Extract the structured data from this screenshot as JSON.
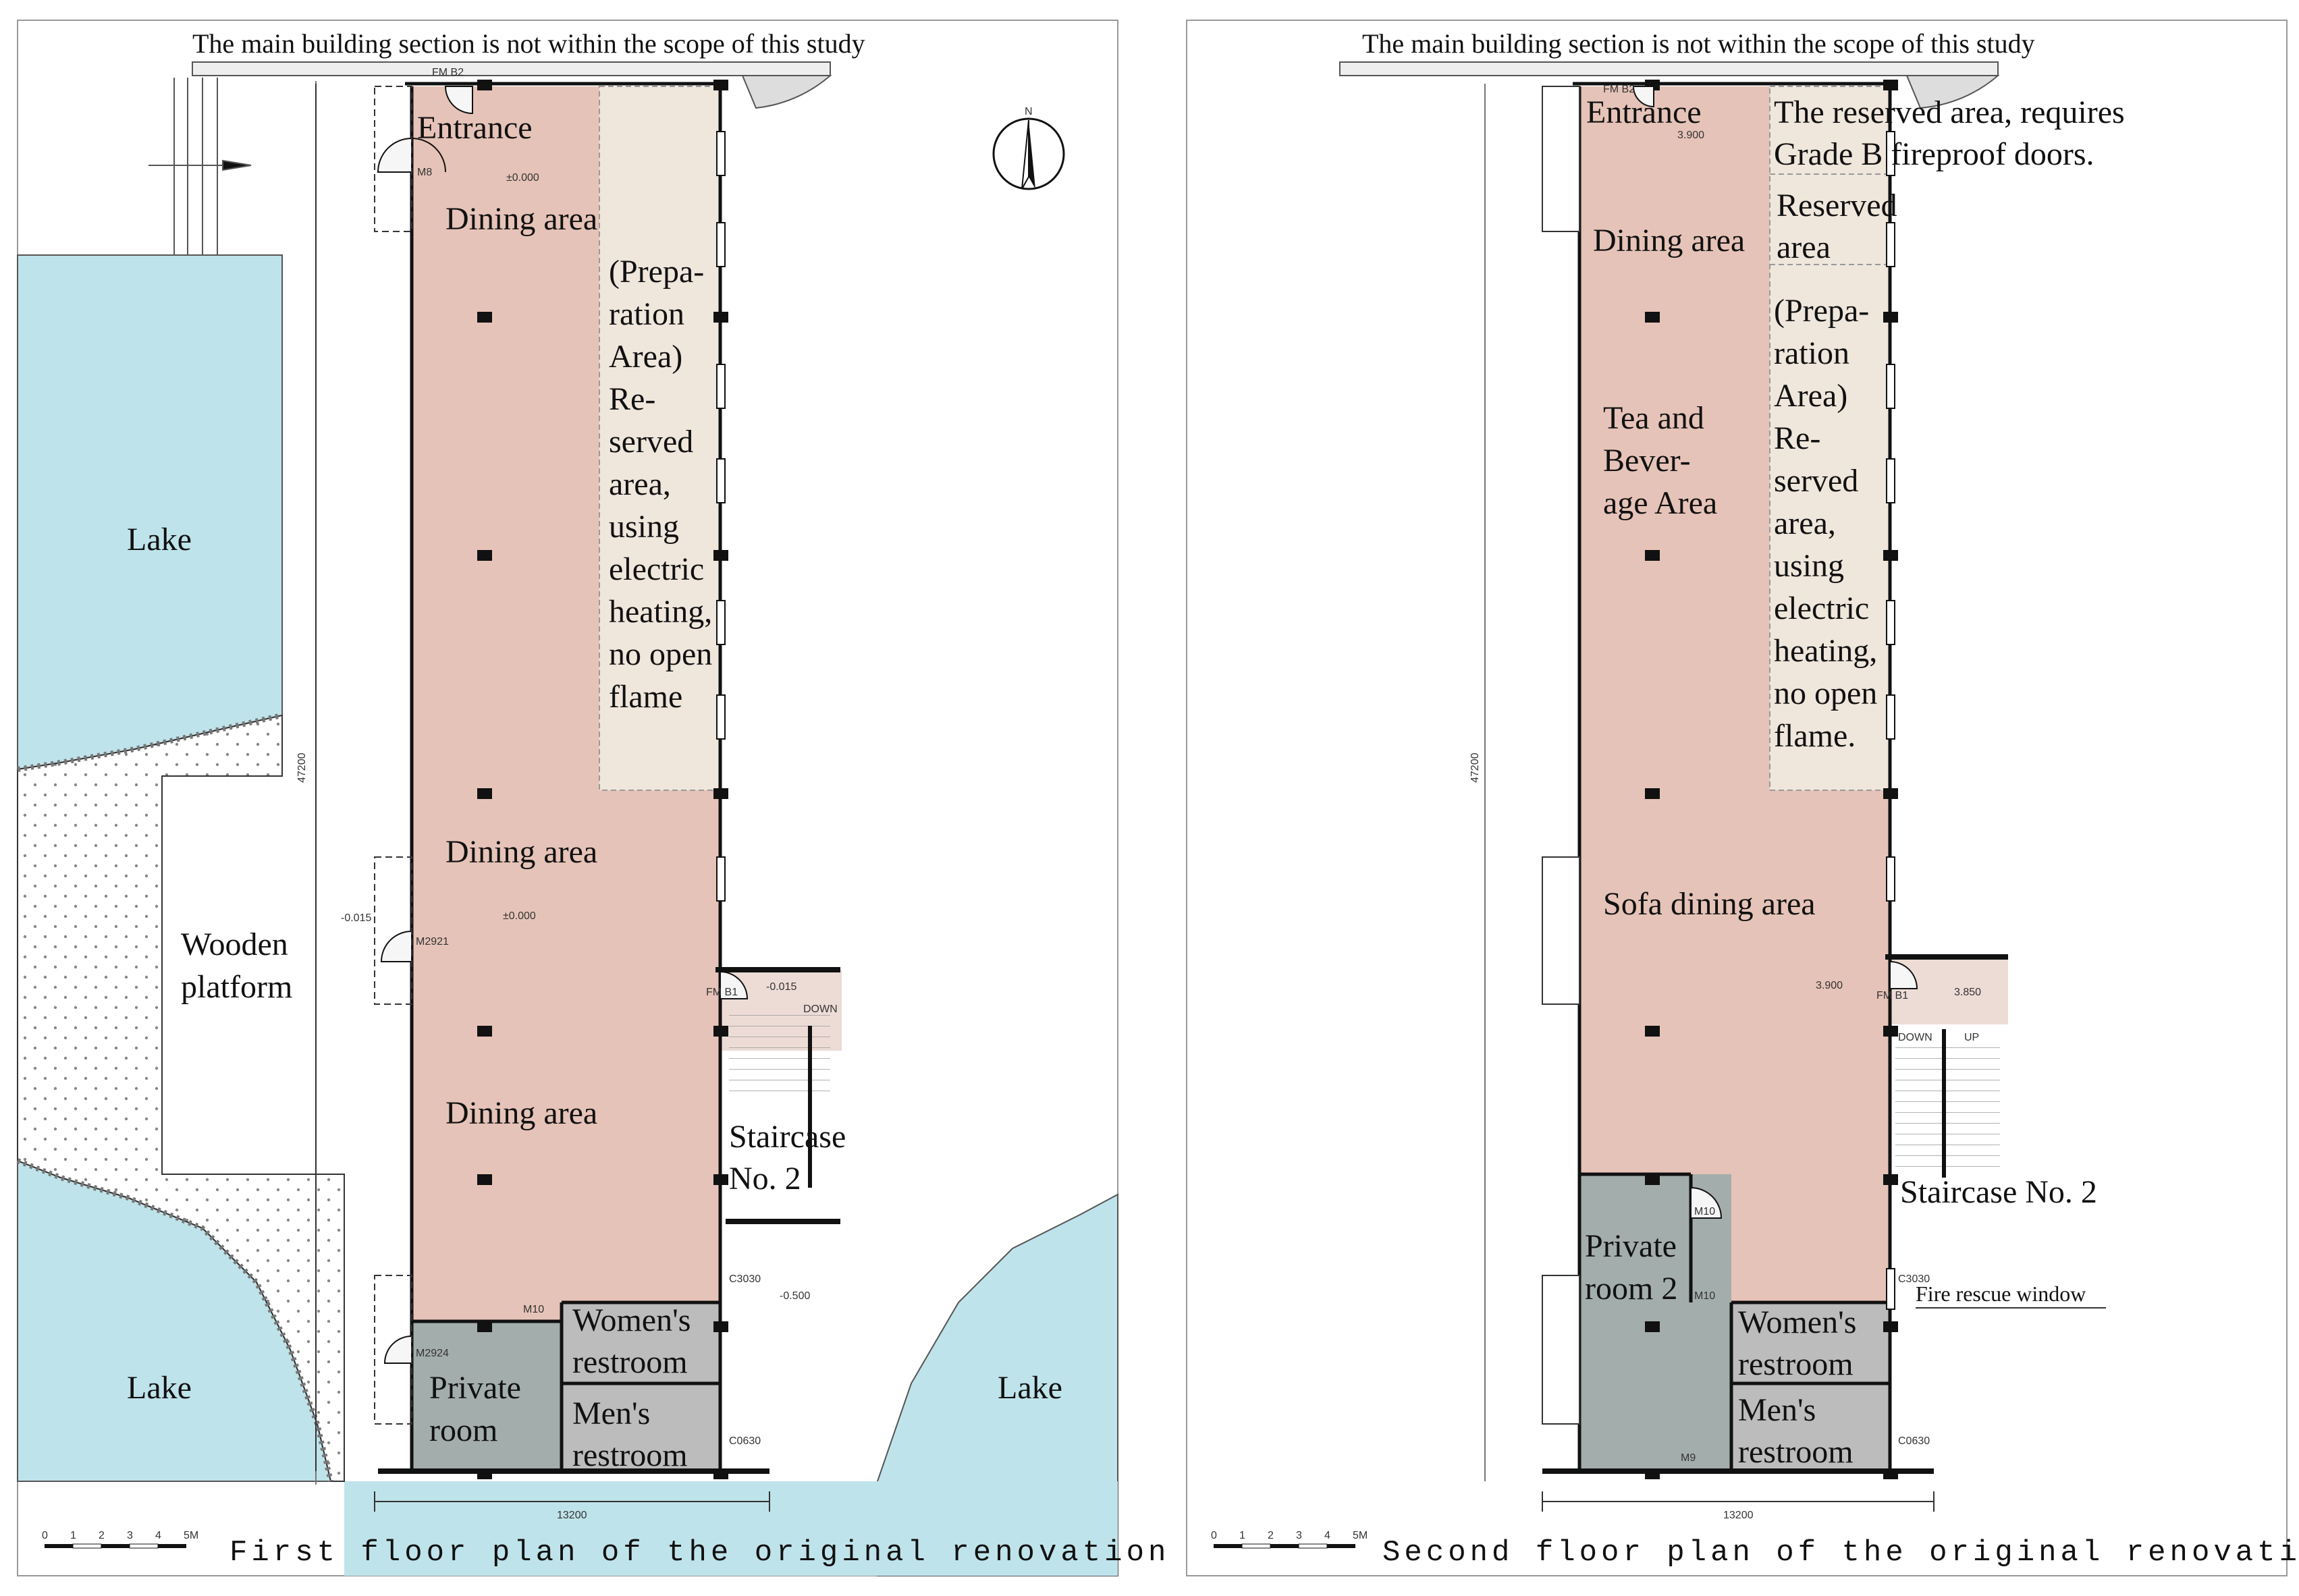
{
  "colors": {
    "lake": "#bfe3ea",
    "dining": "#e6c3b8",
    "reserved": "#efe6dc",
    "private_room": "#a3adab",
    "restroom": "#bcbcbc",
    "staircase": "#eddcd6",
    "wall": "#111111",
    "hatch": "#888888"
  },
  "icons": {
    "north_arrow": "north-arrow-icon",
    "scale_bar": "scale-bar-icon"
  },
  "plan1": {
    "scope_note": "The main building section is not within the scope of this study",
    "caption": "First floor plan of the original renovation scheme",
    "north": "N",
    "rooms": {
      "entrance": "Entrance",
      "dining1": "Dining area",
      "dining2": "Dining area",
      "dining3": "Dining area",
      "reserved": [
        "(Prepa-",
        "ration",
        "Area)",
        "Re-",
        "served",
        "area,",
        "using",
        "electric",
        "heating,",
        "no open",
        "flame"
      ],
      "staircase": [
        "Staircase",
        "No. 2"
      ],
      "womens": [
        "Women's",
        "restroom"
      ],
      "mens": [
        "Men's",
        "restroom"
      ],
      "private": [
        "Private",
        "room"
      ],
      "lake_left_top": "Lake",
      "lake_left_bottom": "Lake",
      "lake_right": "Lake",
      "platform": [
        "Wooden",
        "platform"
      ]
    },
    "dims": {
      "width": "13200",
      "height": "47200"
    },
    "levels": [
      "±0.000",
      "±0.000",
      "-0.015",
      "-0.015",
      "-0.500"
    ],
    "doors": [
      "FM B2",
      "M8",
      "M2921",
      "M2924",
      "M10",
      "FM B1",
      "C3030",
      "C0630",
      "DOWN"
    ],
    "scale": [
      "0",
      "1",
      "2",
      "3",
      "4",
      "5M"
    ]
  },
  "plan2": {
    "scope_note": "The main building section is not within the scope of this study",
    "caption": "Second floor plan of the original renovation scheme",
    "rooms": {
      "entrance": "Entrance",
      "reserved_note": [
        "The reserved area, requires",
        "Grade B fireproof doors."
      ],
      "dining": "Dining area",
      "reserved_small": [
        "Reserved",
        "area"
      ],
      "tea": [
        "Tea and",
        "Bever-",
        "age Area"
      ],
      "reserved": [
        "(Prepa-",
        "ration",
        "Area)",
        "Re-",
        "served",
        "area,",
        "using",
        "electric",
        "heating,",
        "no open",
        "flame."
      ],
      "sofa": "Sofa dining area",
      "staircase": "Staircase No. 2",
      "fire_window": "Fire rescue window",
      "private2": [
        "Private",
        "room 2"
      ],
      "womens": [
        "Women's",
        "restroom"
      ],
      "mens": [
        "Men's",
        "restroom"
      ]
    },
    "dims": {
      "width": "13200",
      "height": "47200"
    },
    "levels": [
      "3.900",
      "3.900",
      "3.850"
    ],
    "doors": [
      "FM B2",
      "FM B1",
      "M10",
      "M10",
      "M9",
      "C3030",
      "C0630",
      "DOWN",
      "UP"
    ],
    "scale": [
      "0",
      "1",
      "2",
      "3",
      "4",
      "5M"
    ]
  }
}
